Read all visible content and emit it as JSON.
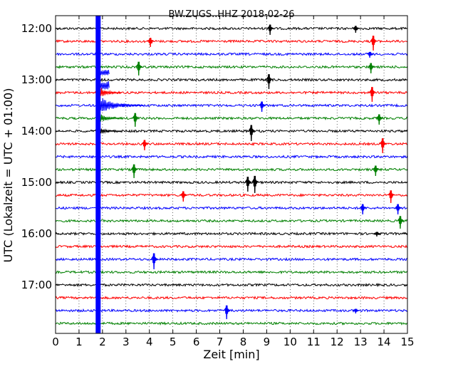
{
  "chart_data": {
    "type": "line",
    "title": "BW.ZUGS..HHZ 2018-02-26",
    "xlabel": "Zeit  [min]",
    "ylabel": "UTC (Lokalzeit = UTC + 01:00)",
    "xlim": [
      0,
      15
    ],
    "x_ticks": [
      "0",
      "1",
      "2",
      "3",
      "4",
      "5",
      "6",
      "7",
      "8",
      "9",
      "10",
      "11",
      "12",
      "13",
      "14",
      "15"
    ],
    "y_ticks": [
      "12:00",
      "13:00",
      "14:00",
      "15:00",
      "16:00",
      "17:00"
    ],
    "grid": true,
    "row_colors": [
      "#000000",
      "#ff0000",
      "#0000ff",
      "#008000"
    ],
    "traces_per_hour": 4,
    "trace_interval_min": 15,
    "num_traces": 24,
    "first_trace": "12:00",
    "large_event_minute": 1.8,
    "events": [
      {
        "trace": 0,
        "minute": 9.15,
        "amp": 0.9
      },
      {
        "trace": 0,
        "minute": 12.8,
        "amp": 0.6
      },
      {
        "trace": 1,
        "minute": 4.05,
        "amp": 0.8
      },
      {
        "trace": 1,
        "minute": 13.55,
        "amp": 1.3
      },
      {
        "trace": 2,
        "minute": 13.4,
        "amp": 0.5
      },
      {
        "trace": 3,
        "minute": 3.55,
        "amp": 1.2
      },
      {
        "trace": 3,
        "minute": 13.45,
        "amp": 0.9
      },
      {
        "trace": 4,
        "minute": 9.1,
        "amp": 1.3
      },
      {
        "trace": 5,
        "minute": 13.5,
        "amp": 1.3
      },
      {
        "trace": 6,
        "minute": 8.8,
        "amp": 0.9
      },
      {
        "trace": 7,
        "minute": 3.4,
        "amp": 1.2
      },
      {
        "trace": 7,
        "minute": 13.8,
        "amp": 0.9
      },
      {
        "trace": 8,
        "minute": 8.35,
        "amp": 1.4
      },
      {
        "trace": 9,
        "minute": 3.8,
        "amp": 0.9
      },
      {
        "trace": 9,
        "minute": 13.95,
        "amp": 1.3
      },
      {
        "trace": 11,
        "minute": 3.35,
        "amp": 1.2
      },
      {
        "trace": 11,
        "minute": 13.65,
        "amp": 0.9
      },
      {
        "trace": 12,
        "minute": 8.2,
        "amp": 1.3
      },
      {
        "trace": 12,
        "minute": 8.5,
        "amp": 1.5
      },
      {
        "trace": 13,
        "minute": 5.45,
        "amp": 0.9
      },
      {
        "trace": 13,
        "minute": 14.3,
        "amp": 1.1
      },
      {
        "trace": 14,
        "minute": 13.1,
        "amp": 0.9
      },
      {
        "trace": 14,
        "minute": 14.6,
        "amp": 0.9
      },
      {
        "trace": 15,
        "minute": 14.7,
        "amp": 1.1
      },
      {
        "trace": 16,
        "minute": 13.7,
        "amp": 0.4
      },
      {
        "trace": 18,
        "minute": 4.2,
        "amp": 1.4
      },
      {
        "trace": 22,
        "minute": 7.3,
        "amp": 1.2
      },
      {
        "trace": 22,
        "minute": 12.8,
        "amp": 0.4
      }
    ]
  }
}
